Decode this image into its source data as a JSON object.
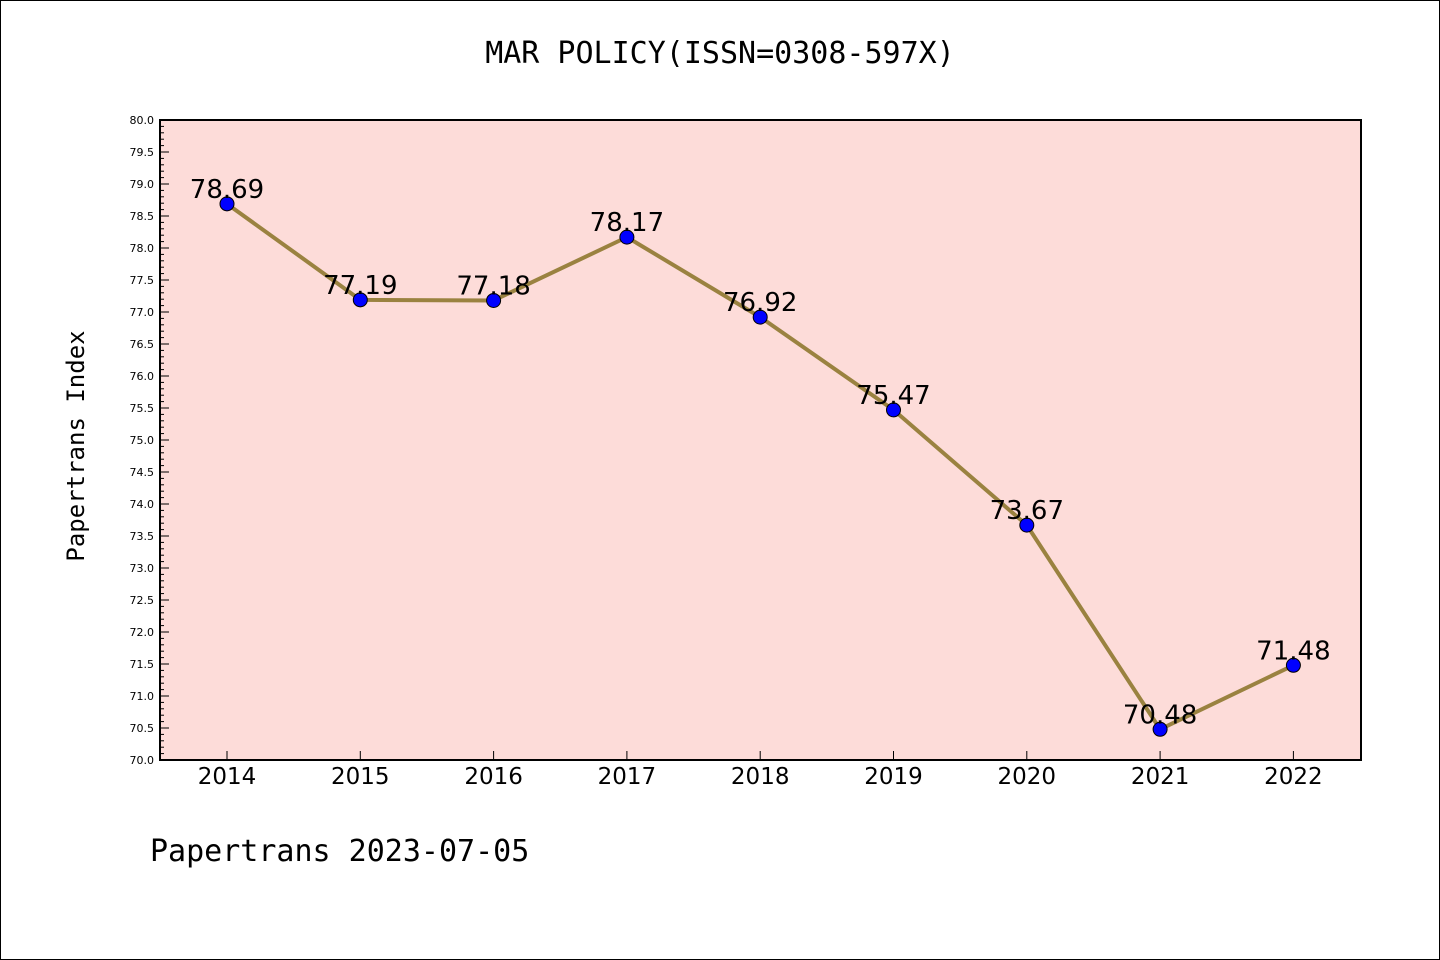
{
  "chart_data": {
    "type": "line",
    "title": "MAR POLICY(ISSN=0308-597X)",
    "xlabel": "",
    "ylabel": "Papertrans Index",
    "x": [
      "2014",
      "2015",
      "2016",
      "2017",
      "2018",
      "2019",
      "2020",
      "2021",
      "2022"
    ],
    "values": [
      78.69,
      77.19,
      77.18,
      78.17,
      76.92,
      75.47,
      73.67,
      70.48,
      71.48
    ],
    "data_labels": [
      "78.69",
      "77.19",
      "77.18",
      "78.17",
      "76.92",
      "75.47",
      "73.67",
      "70.48",
      "71.48"
    ],
    "ylim": [
      70.0,
      80.0
    ],
    "y_ticks": [
      "70.0",
      "70.5",
      "71.0",
      "71.5",
      "72.0",
      "72.5",
      "73.0",
      "73.5",
      "74.0",
      "74.5",
      "75.0",
      "75.5",
      "76.0",
      "76.5",
      "77.0",
      "77.5",
      "78.0",
      "78.5",
      "79.0",
      "79.5",
      "80.0"
    ],
    "grid": false,
    "colors": {
      "plot_background": "#fddcd9",
      "line": "#9a8240",
      "marker": "#0000ff"
    }
  },
  "footer": "Papertrans 2023-07-05"
}
